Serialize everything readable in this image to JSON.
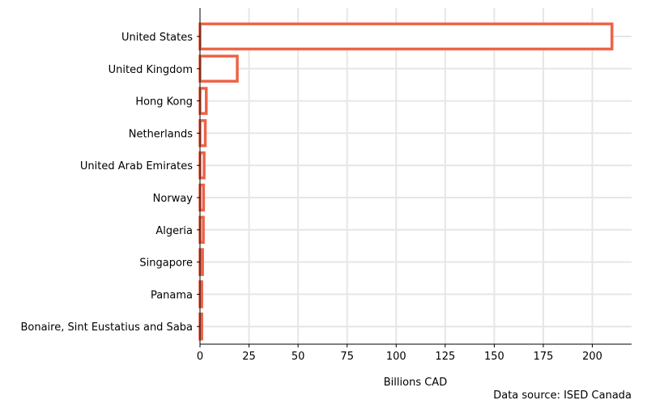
{
  "chart_data": {
    "type": "bar",
    "orientation": "horizontal",
    "categories": [
      "United States",
      "United Kingdom",
      "Hong Kong",
      "Netherlands",
      "United Arab Emirates",
      "Norway",
      "Algeria",
      "Singapore",
      "Panama",
      "Bonaire, Sint Eustatius and Saba"
    ],
    "values": [
      210,
      19,
      3.2,
      2.7,
      2.1,
      1.8,
      1.7,
      1.3,
      0.9,
      0.9
    ],
    "xlabel": "Billions CAD",
    "ylabel": "",
    "xlim": [
      0,
      220
    ],
    "xticks": [
      0,
      25,
      50,
      75,
      100,
      125,
      150,
      175,
      200
    ],
    "grid": "both",
    "bar_style": "outline",
    "colors": {
      "bar_edge": "#ee6347",
      "bar_fill": "#ffffff",
      "grid": "#e6e6e6",
      "axis": "#000000"
    }
  },
  "source_note": "Data source: ISED Canada"
}
